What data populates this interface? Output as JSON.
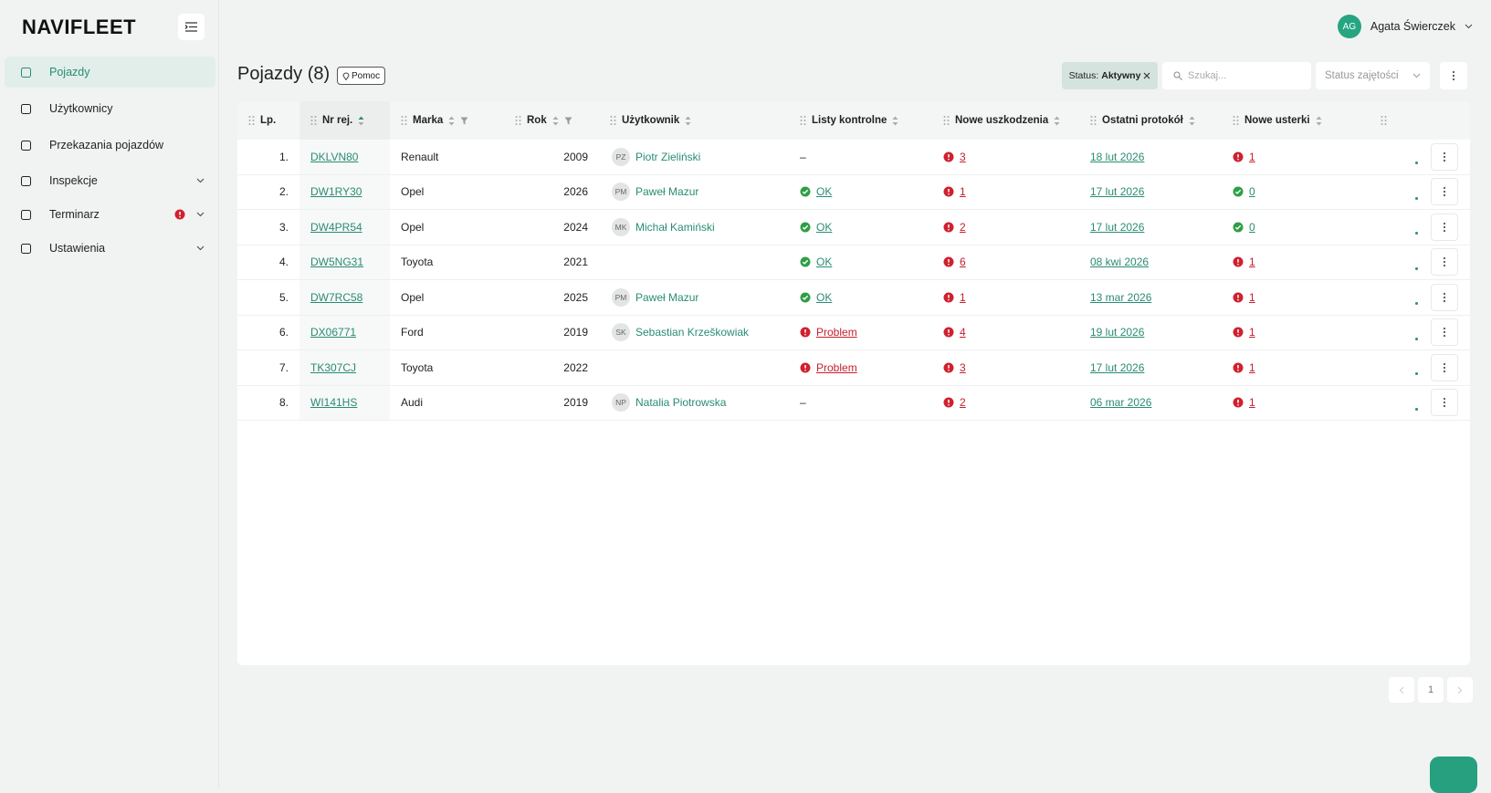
{
  "brand": "NAVIFLEET",
  "user": {
    "initials": "AG",
    "name": "Agata Świerczek"
  },
  "nav": [
    {
      "label": "Pojazdy",
      "active": true
    },
    {
      "label": "Użytkownicy"
    },
    {
      "label": "Przekazania pojazdów"
    },
    {
      "label": "Inspekcje",
      "expandable": true
    },
    {
      "label": "Terminarz",
      "expandable": true,
      "alert": true
    },
    {
      "label": "Ustawienia",
      "expandable": true
    }
  ],
  "header": {
    "title": "Pojazdy (8)",
    "help": "Pomoc",
    "filter_chip": {
      "label": "Status:",
      "value": "Aktywny"
    },
    "search_placeholder": "Szukaj...",
    "dropdown": "Status zajętości"
  },
  "table": {
    "columns": [
      {
        "label": "Lp."
      },
      {
        "label": "Nr rej.",
        "sort": true,
        "sorted": true
      },
      {
        "label": "Marka",
        "sort": true,
        "filter": true
      },
      {
        "label": "Rok",
        "sort": true,
        "filter": true
      },
      {
        "label": "Użytkownik",
        "sort": true
      },
      {
        "label": "Listy kontrolne",
        "sort": true
      },
      {
        "label": "Nowe uszkodzenia",
        "sort": true
      },
      {
        "label": "Ostatni protokół",
        "sort": true
      },
      {
        "label": "Nowe usterki",
        "sort": true
      }
    ],
    "rows": [
      {
        "lp": "1.",
        "nr": "DKLVN80",
        "marka": "Renault",
        "rok": "2009",
        "initials": "PZ",
        "user": "Piotr Zieliński",
        "listy": {
          "text": "–"
        },
        "uszkodzenia": {
          "text": "3",
          "state": "error"
        },
        "protokol": "18 lut 2026",
        "usterki": {
          "text": "1",
          "state": "error"
        }
      },
      {
        "lp": "2.",
        "nr": "DW1RY30",
        "marka": "Opel",
        "rok": "2026",
        "initials": "PM",
        "user": "Paweł Mazur",
        "listy": {
          "text": "OK",
          "state": "ok"
        },
        "uszkodzenia": {
          "text": "1",
          "state": "error"
        },
        "protokol": "17 lut 2026",
        "usterki": {
          "text": "0",
          "state": "ok"
        }
      },
      {
        "lp": "3.",
        "nr": "DW4PR54",
        "marka": "Opel",
        "rok": "2024",
        "initials": "MK",
        "user": "Michał Kamiński",
        "listy": {
          "text": "OK",
          "state": "ok"
        },
        "uszkodzenia": {
          "text": "2",
          "state": "error"
        },
        "protokol": "17 lut 2026",
        "usterki": {
          "text": "0",
          "state": "ok"
        }
      },
      {
        "lp": "4.",
        "nr": "DW5NG31",
        "marka": "Toyota",
        "rok": "2021",
        "listy": {
          "text": "OK",
          "state": "ok"
        },
        "uszkodzenia": {
          "text": "6",
          "state": "error"
        },
        "protokol": "08 kwi 2026",
        "usterki": {
          "text": "1",
          "state": "error"
        }
      },
      {
        "lp": "5.",
        "nr": "DW7RC58",
        "marka": "Opel",
        "rok": "2025",
        "initials": "PM",
        "user": "Paweł Mazur",
        "listy": {
          "text": "OK",
          "state": "ok"
        },
        "uszkodzenia": {
          "text": "1",
          "state": "error"
        },
        "protokol": "13 mar 2026",
        "usterki": {
          "text": "1",
          "state": "error"
        }
      },
      {
        "lp": "6.",
        "nr": "DX06771",
        "marka": "Ford",
        "rok": "2019",
        "initials": "SK",
        "user": "Sebastian Krzeškowiak",
        "listy": {
          "text": "Problem",
          "state": "error"
        },
        "uszkodzenia": {
          "text": "4",
          "state": "error"
        },
        "protokol": "19 lut 2026",
        "usterki": {
          "text": "1",
          "state": "error"
        }
      },
      {
        "lp": "7.",
        "nr": "TK307CJ",
        "marka": "Toyota",
        "rok": "2022",
        "listy": {
          "text": "Problem",
          "state": "error"
        },
        "uszkodzenia": {
          "text": "3",
          "state": "error"
        },
        "protokol": "17 lut 2026",
        "usterki": {
          "text": "1",
          "state": "error"
        }
      },
      {
        "lp": "8.",
        "nr": "WI141HS",
        "marka": "Audi",
        "rok": "2019",
        "initials": "NP",
        "user": "Natalia Piotrowska",
        "listy": {
          "text": "–"
        },
        "uszkodzenia": {
          "text": "2",
          "state": "error"
        },
        "protokol": "06 mar 2026",
        "usterki": {
          "text": "1",
          "state": "error"
        }
      }
    ]
  },
  "pagination": {
    "current": "1"
  }
}
